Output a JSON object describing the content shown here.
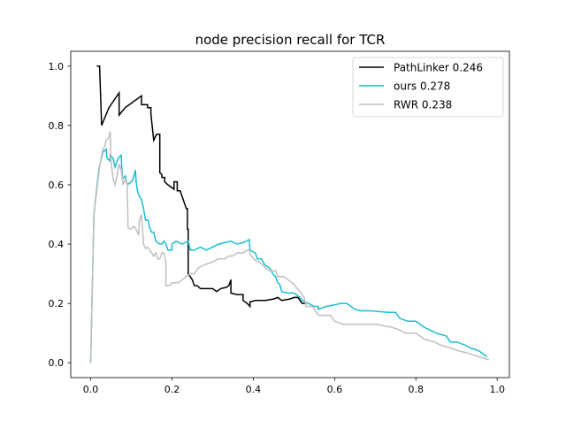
{
  "chart_data": {
    "type": "line",
    "title": "node precision recall for TCR",
    "xlabel": "",
    "ylabel": "",
    "xlim": [
      -0.049,
      1.03
    ],
    "ylim": [
      -0.05,
      1.05
    ],
    "xticks": [
      0.0,
      0.2,
      0.4,
      0.6,
      0.8,
      1.0
    ],
    "xtick_labels": [
      "0.0",
      "0.2",
      "0.4",
      "0.6",
      "0.8",
      "1.0"
    ],
    "yticks": [
      0.0,
      0.2,
      0.4,
      0.6,
      0.8,
      1.0
    ],
    "ytick_labels": [
      "0.0",
      "0.2",
      "0.4",
      "0.6",
      "0.8",
      "1.0"
    ],
    "grid": false,
    "legend_position": "top-right",
    "series": [
      {
        "name": "PathLinker 0.246",
        "color": "#000000",
        "points": [
          [
            0.015,
            1.0
          ],
          [
            0.022,
            1.0
          ],
          [
            0.027,
            0.8
          ],
          [
            0.045,
            0.86
          ],
          [
            0.065,
            0.9
          ],
          [
            0.07,
            0.91
          ],
          [
            0.07,
            0.835
          ],
          [
            0.085,
            0.86
          ],
          [
            0.105,
            0.88
          ],
          [
            0.115,
            0.89
          ],
          [
            0.125,
            0.9
          ],
          [
            0.125,
            0.87
          ],
          [
            0.14,
            0.87
          ],
          [
            0.14,
            0.86
          ],
          [
            0.148,
            0.86
          ],
          [
            0.148,
            0.84
          ],
          [
            0.155,
            0.75
          ],
          [
            0.162,
            0.77
          ],
          [
            0.17,
            0.77
          ],
          [
            0.17,
            0.64
          ],
          [
            0.175,
            0.635
          ],
          [
            0.175,
            0.625
          ],
          [
            0.182,
            0.625
          ],
          [
            0.182,
            0.61
          ],
          [
            0.19,
            0.6
          ],
          [
            0.205,
            0.585
          ],
          [
            0.205,
            0.61
          ],
          [
            0.213,
            0.61
          ],
          [
            0.213,
            0.58
          ],
          [
            0.22,
            0.58
          ],
          [
            0.235,
            0.52
          ],
          [
            0.238,
            0.52
          ],
          [
            0.238,
            0.45
          ],
          [
            0.24,
            0.45
          ],
          [
            0.24,
            0.3
          ],
          [
            0.245,
            0.29
          ],
          [
            0.25,
            0.28
          ],
          [
            0.255,
            0.26
          ],
          [
            0.262,
            0.26
          ],
          [
            0.27,
            0.25
          ],
          [
            0.285,
            0.25
          ],
          [
            0.3,
            0.25
          ],
          [
            0.31,
            0.24
          ],
          [
            0.32,
            0.25
          ],
          [
            0.335,
            0.255
          ],
          [
            0.34,
            0.26
          ],
          [
            0.345,
            0.28
          ],
          [
            0.345,
            0.235
          ],
          [
            0.36,
            0.23
          ],
          [
            0.375,
            0.23
          ],
          [
            0.375,
            0.21
          ],
          [
            0.385,
            0.2
          ],
          [
            0.392,
            0.19
          ],
          [
            0.392,
            0.205
          ],
          [
            0.405,
            0.21
          ],
          [
            0.43,
            0.21
          ],
          [
            0.45,
            0.215
          ],
          [
            0.46,
            0.22
          ],
          [
            0.47,
            0.21
          ],
          [
            0.49,
            0.215
          ],
          [
            0.5,
            0.22
          ],
          [
            0.51,
            0.22
          ],
          [
            0.515,
            0.21
          ],
          [
            0.52,
            0.2
          ],
          [
            0.53,
            0.2
          ]
        ]
      },
      {
        "name": "ours 0.278",
        "color": "#17becf",
        "points": [
          [
            0.0,
            0.0
          ],
          [
            0.008,
            0.5
          ],
          [
            0.02,
            0.65
          ],
          [
            0.03,
            0.71
          ],
          [
            0.038,
            0.72
          ],
          [
            0.04,
            0.69
          ],
          [
            0.048,
            0.68
          ],
          [
            0.048,
            0.7
          ],
          [
            0.055,
            0.69
          ],
          [
            0.06,
            0.66
          ],
          [
            0.068,
            0.69
          ],
          [
            0.075,
            0.7
          ],
          [
            0.078,
            0.62
          ],
          [
            0.085,
            0.63
          ],
          [
            0.09,
            0.6
          ],
          [
            0.1,
            0.61
          ],
          [
            0.105,
            0.62
          ],
          [
            0.11,
            0.65
          ],
          [
            0.112,
            0.61
          ],
          [
            0.115,
            0.58
          ],
          [
            0.12,
            0.56
          ],
          [
            0.125,
            0.55
          ],
          [
            0.13,
            0.52
          ],
          [
            0.135,
            0.48
          ],
          [
            0.142,
            0.48
          ],
          [
            0.145,
            0.455
          ],
          [
            0.15,
            0.44
          ],
          [
            0.155,
            0.44
          ],
          [
            0.16,
            0.41
          ],
          [
            0.17,
            0.4
          ],
          [
            0.175,
            0.4
          ],
          [
            0.18,
            0.41
          ],
          [
            0.185,
            0.4
          ],
          [
            0.19,
            0.38
          ],
          [
            0.2,
            0.38
          ],
          [
            0.2,
            0.4
          ],
          [
            0.21,
            0.41
          ],
          [
            0.225,
            0.4
          ],
          [
            0.24,
            0.41
          ],
          [
            0.245,
            0.38
          ],
          [
            0.255,
            0.38
          ],
          [
            0.27,
            0.39
          ],
          [
            0.285,
            0.38
          ],
          [
            0.3,
            0.39
          ],
          [
            0.315,
            0.4
          ],
          [
            0.33,
            0.405
          ],
          [
            0.345,
            0.41
          ],
          [
            0.36,
            0.4
          ],
          [
            0.375,
            0.405
          ],
          [
            0.39,
            0.415
          ],
          [
            0.392,
            0.38
          ],
          [
            0.405,
            0.37
          ],
          [
            0.41,
            0.35
          ],
          [
            0.42,
            0.35
          ],
          [
            0.428,
            0.33
          ],
          [
            0.44,
            0.32
          ],
          [
            0.448,
            0.3
          ],
          [
            0.455,
            0.29
          ],
          [
            0.46,
            0.27
          ],
          [
            0.465,
            0.265
          ],
          [
            0.47,
            0.24
          ],
          [
            0.485,
            0.235
          ],
          [
            0.5,
            0.235
          ],
          [
            0.515,
            0.22
          ],
          [
            0.52,
            0.21
          ],
          [
            0.535,
            0.2
          ],
          [
            0.55,
            0.19
          ],
          [
            0.56,
            0.19
          ],
          [
            0.56,
            0.18
          ],
          [
            0.58,
            0.19
          ],
          [
            0.6,
            0.195
          ],
          [
            0.615,
            0.2
          ],
          [
            0.63,
            0.2
          ],
          [
            0.65,
            0.18
          ],
          [
            0.665,
            0.175
          ],
          [
            0.69,
            0.175
          ],
          [
            0.73,
            0.17
          ],
          [
            0.75,
            0.17
          ],
          [
            0.76,
            0.15
          ],
          [
            0.78,
            0.14
          ],
          [
            0.8,
            0.14
          ],
          [
            0.82,
            0.12
          ],
          [
            0.85,
            0.1
          ],
          [
            0.875,
            0.09
          ],
          [
            0.885,
            0.07
          ],
          [
            0.9,
            0.07
          ],
          [
            0.92,
            0.06
          ],
          [
            0.935,
            0.05
          ],
          [
            0.955,
            0.04
          ],
          [
            0.975,
            0.02
          ]
        ]
      },
      {
        "name": "RWR 0.238",
        "color": "#bfbfbf",
        "points": [
          [
            0.0,
            0.0
          ],
          [
            0.008,
            0.5
          ],
          [
            0.022,
            0.66
          ],
          [
            0.03,
            0.72
          ],
          [
            0.035,
            0.73
          ],
          [
            0.038,
            0.75
          ],
          [
            0.045,
            0.76
          ],
          [
            0.048,
            0.78
          ],
          [
            0.05,
            0.68
          ],
          [
            0.055,
            0.62
          ],
          [
            0.06,
            0.6
          ],
          [
            0.065,
            0.63
          ],
          [
            0.07,
            0.67
          ],
          [
            0.075,
            0.65
          ],
          [
            0.08,
            0.6
          ],
          [
            0.085,
            0.62
          ],
          [
            0.09,
            0.6
          ],
          [
            0.092,
            0.455
          ],
          [
            0.1,
            0.45
          ],
          [
            0.105,
            0.46
          ],
          [
            0.11,
            0.455
          ],
          [
            0.118,
            0.43
          ],
          [
            0.12,
            0.48
          ],
          [
            0.125,
            0.5
          ],
          [
            0.128,
            0.44
          ],
          [
            0.13,
            0.4
          ],
          [
            0.135,
            0.385
          ],
          [
            0.14,
            0.39
          ],
          [
            0.15,
            0.37
          ],
          [
            0.155,
            0.36
          ],
          [
            0.16,
            0.37
          ],
          [
            0.165,
            0.35
          ],
          [
            0.17,
            0.35
          ],
          [
            0.175,
            0.37
          ],
          [
            0.18,
            0.37
          ],
          [
            0.185,
            0.34
          ],
          [
            0.185,
            0.26
          ],
          [
            0.195,
            0.26
          ],
          [
            0.2,
            0.27
          ],
          [
            0.215,
            0.27
          ],
          [
            0.225,
            0.28
          ],
          [
            0.235,
            0.29
          ],
          [
            0.245,
            0.3
          ],
          [
            0.255,
            0.3
          ],
          [
            0.265,
            0.32
          ],
          [
            0.28,
            0.33
          ],
          [
            0.3,
            0.34
          ],
          [
            0.315,
            0.35
          ],
          [
            0.33,
            0.35
          ],
          [
            0.34,
            0.36
          ],
          [
            0.35,
            0.36
          ],
          [
            0.36,
            0.37
          ],
          [
            0.375,
            0.37
          ],
          [
            0.385,
            0.38
          ],
          [
            0.39,
            0.38
          ],
          [
            0.395,
            0.36
          ],
          [
            0.405,
            0.345
          ],
          [
            0.415,
            0.34
          ],
          [
            0.43,
            0.32
          ],
          [
            0.44,
            0.31
          ],
          [
            0.455,
            0.31
          ],
          [
            0.46,
            0.29
          ],
          [
            0.475,
            0.29
          ],
          [
            0.485,
            0.28
          ],
          [
            0.5,
            0.265
          ],
          [
            0.505,
            0.255
          ],
          [
            0.515,
            0.24
          ],
          [
            0.52,
            0.23
          ],
          [
            0.525,
            0.22
          ],
          [
            0.53,
            0.19
          ],
          [
            0.545,
            0.19
          ],
          [
            0.55,
            0.18
          ],
          [
            0.56,
            0.16
          ],
          [
            0.575,
            0.16
          ],
          [
            0.59,
            0.16
          ],
          [
            0.6,
            0.14
          ],
          [
            0.62,
            0.13
          ],
          [
            0.65,
            0.13
          ],
          [
            0.7,
            0.13
          ],
          [
            0.74,
            0.12
          ],
          [
            0.76,
            0.11
          ],
          [
            0.775,
            0.1
          ],
          [
            0.8,
            0.1
          ],
          [
            0.82,
            0.08
          ],
          [
            0.845,
            0.07
          ],
          [
            0.86,
            0.06
          ],
          [
            0.885,
            0.05
          ],
          [
            0.905,
            0.04
          ],
          [
            0.935,
            0.03
          ],
          [
            0.955,
            0.02
          ],
          [
            0.98,
            0.01
          ]
        ]
      }
    ]
  }
}
